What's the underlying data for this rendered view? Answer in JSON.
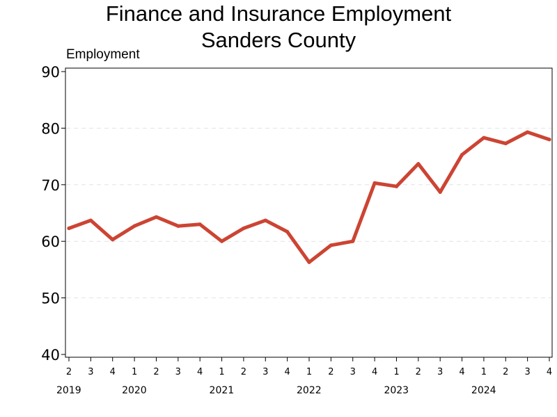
{
  "chart_data": {
    "type": "line",
    "title": "Finance and Insurance Employment",
    "subtitle": "Sanders County",
    "ylabel": "Employment",
    "xlabel": "",
    "ylim": [
      40,
      90
    ],
    "yticks": [
      40,
      50,
      60,
      70,
      80,
      90
    ],
    "grid": "horizontal dashed",
    "legend": "none",
    "line_color": "#cc4433",
    "categories": [
      {
        "quarter": "2",
        "year": "2019"
      },
      {
        "quarter": "3",
        "year": "2019"
      },
      {
        "quarter": "4",
        "year": "2019"
      },
      {
        "quarter": "1",
        "year": "2020"
      },
      {
        "quarter": "2",
        "year": "2020"
      },
      {
        "quarter": "3",
        "year": "2020"
      },
      {
        "quarter": "4",
        "year": "2020"
      },
      {
        "quarter": "1",
        "year": "2021"
      },
      {
        "quarter": "2",
        "year": "2021"
      },
      {
        "quarter": "3",
        "year": "2021"
      },
      {
        "quarter": "4",
        "year": "2021"
      },
      {
        "quarter": "1",
        "year": "2022"
      },
      {
        "quarter": "2",
        "year": "2022"
      },
      {
        "quarter": "3",
        "year": "2022"
      },
      {
        "quarter": "4",
        "year": "2022"
      },
      {
        "quarter": "1",
        "year": "2023"
      },
      {
        "quarter": "2",
        "year": "2023"
      },
      {
        "quarter": "3",
        "year": "2023"
      },
      {
        "quarter": "4",
        "year": "2023"
      },
      {
        "quarter": "1",
        "year": "2024"
      },
      {
        "quarter": "2",
        "year": "2024"
      },
      {
        "quarter": "3",
        "year": "2024"
      },
      {
        "quarter": "4",
        "year": "2024"
      }
    ],
    "year_labels": [
      "2019",
      "2020",
      "2021",
      "2022",
      "2023",
      "2024"
    ],
    "series": [
      {
        "values": [
          62.3,
          63.7,
          60.3,
          62.7,
          64.3,
          62.7,
          63.0,
          60.0,
          62.3,
          63.7,
          61.7,
          56.3,
          59.3,
          60.0,
          70.3,
          69.7,
          73.7,
          68.7,
          75.3,
          78.3,
          77.3,
          79.3,
          78.0
        ]
      }
    ]
  }
}
